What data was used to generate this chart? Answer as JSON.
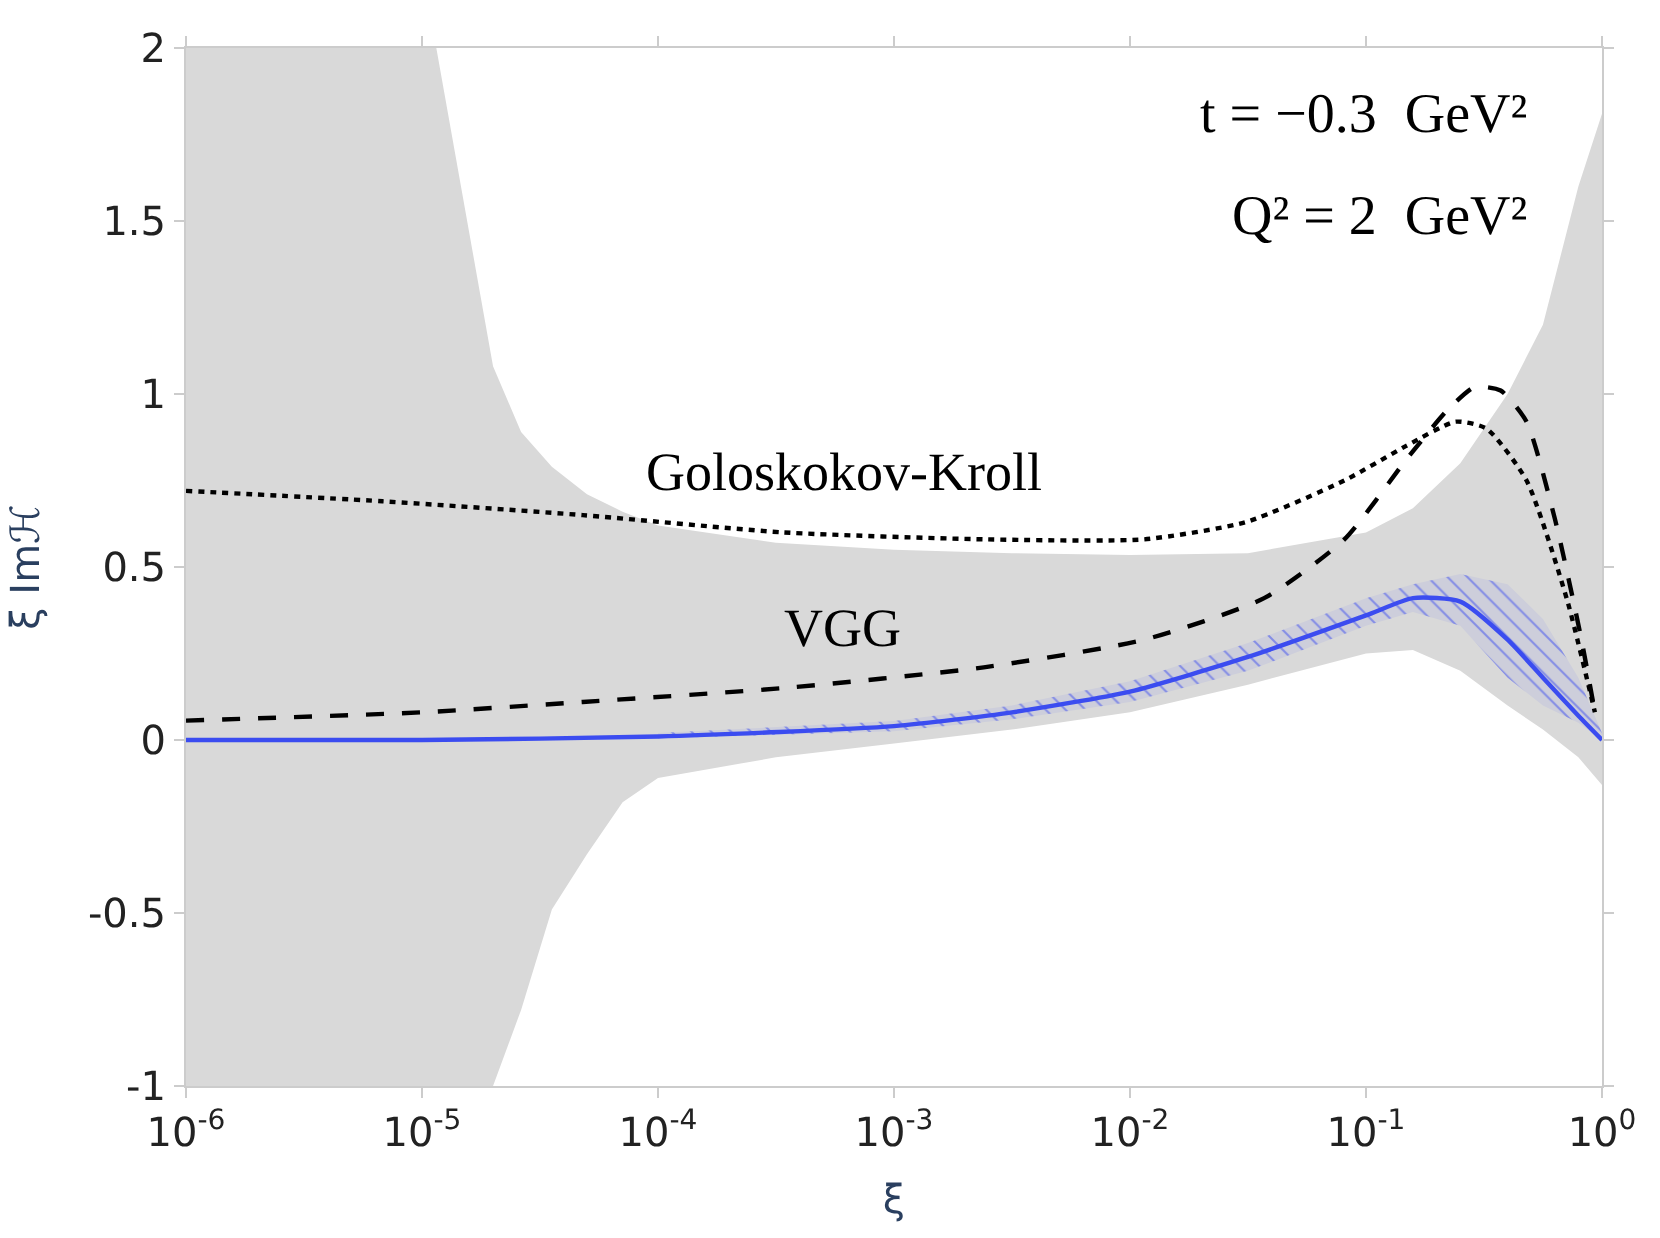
{
  "chart_data": {
    "type": "line",
    "xlabel": "ξ",
    "ylabel": "ξ Imℋ",
    "log": "x",
    "xlim": [
      1e-06,
      1
    ],
    "ylim": [
      -1,
      2
    ],
    "xticks": [
      {
        "value": 1e-06,
        "label": "10$^{-6}$"
      },
      {
        "value": 1e-05,
        "label": "10$^{-5}$"
      },
      {
        "value": 0.0001,
        "label": "10$^{-4}$"
      },
      {
        "value": 0.001,
        "label": "10$^{-3}$"
      },
      {
        "value": 0.01,
        "label": "10$^{-2}$"
      },
      {
        "value": 0.1,
        "label": "10$^{-1}$"
      },
      {
        "value": 1,
        "label": "10$^{0}$"
      }
    ],
    "yticks": [
      -1,
      -0.5,
      0,
      0.5,
      1,
      1.5,
      2
    ],
    "legend": false,
    "series": [
      {
        "type": "area",
        "color": "#d9d9d9",
        "x": [
          1e-06,
          3.16e-06,
          1.15e-05,
          2e-05,
          2.63e-05,
          3.55e-05,
          5e-05,
          7.08e-05,
          0.0001,
          0.000316,
          0.001,
          0.00316,
          0.01,
          0.0316,
          0.1,
          0.158,
          0.251,
          0.398,
          0.562,
          0.794,
          1
        ],
        "values": [
          null,
          null,
          null,
          null,
          null,
          null,
          null,
          null,
          null,
          null,
          null,
          null,
          null,
          null,
          null,
          null,
          null,
          null,
          null,
          null,
          null
        ],
        "lower": [
          -1,
          -1,
          -1,
          -1,
          -0.78,
          -0.49,
          -0.33,
          -0.18,
          -0.11,
          -0.05,
          -0.01,
          0.03,
          0.08,
          0.16,
          0.25,
          0.26,
          0.2,
          0.1,
          0.03,
          -0.05,
          -0.13
        ],
        "upper": [
          2,
          2,
          2,
          1.08,
          0.89,
          0.79,
          0.71,
          0.66,
          0.62,
          0.57,
          0.55,
          0.54,
          0.535,
          0.54,
          0.6,
          0.67,
          0.8,
          1.0,
          1.2,
          1.6,
          1.81
        ]
      },
      {
        "color": "#3b4cf0",
        "line_style": "solid",
        "x": [
          1e-06,
          1e-05,
          0.0001,
          0.001,
          0.00316,
          0.01,
          0.0316,
          0.1,
          0.158,
          0.251,
          0.398,
          0.562,
          0.794,
          1
        ],
        "values": [
          0,
          0,
          0.01,
          0.04,
          0.08,
          0.14,
          0.24,
          0.36,
          0.41,
          0.4,
          0.29,
          0.18,
          0.07,
          0.0
        ],
        "lower": [
          null,
          null,
          0.005,
          0.025,
          0.06,
          0.11,
          0.2,
          0.33,
          0.37,
          0.33,
          0.18,
          0.1,
          0.05,
          0.0
        ],
        "upper": [
          null,
          null,
          0.02,
          0.055,
          0.1,
          0.17,
          0.28,
          0.41,
          0.45,
          0.48,
          0.45,
          0.35,
          0.18,
          0.02
        ]
      },
      {
        "name": "VGG",
        "color": "#000000",
        "line_style": "dashed",
        "x": [
          1e-06,
          1e-05,
          4.8e-05,
          0.000339,
          0.0024,
          0.0115,
          0.037,
          0.081,
          0.148,
          0.219,
          0.288,
          0.372,
          0.479,
          0.631,
          0.813,
          0.933
        ],
        "values": [
          0.056,
          0.08,
          0.11,
          0.15,
          0.21,
          0.29,
          0.41,
          0.58,
          0.81,
          0.95,
          1.02,
          1.01,
          0.92,
          0.64,
          0.3,
          0.08
        ]
      },
      {
        "name": "Goloskokov-Kroll",
        "color": "#000000",
        "line_style": "dotted",
        "x": [
          1e-06,
          6.8e-06,
          4.8e-05,
          0.000339,
          0.0024,
          0.0115,
          0.031,
          0.081,
          0.148,
          0.24,
          0.324,
          0.479,
          0.708,
          0.933
        ],
        "values": [
          0.72,
          0.69,
          0.65,
          0.6,
          0.58,
          0.58,
          0.63,
          0.75,
          0.85,
          0.92,
          0.9,
          0.75,
          0.41,
          0.08
        ]
      }
    ],
    "annotations": [
      "t = −0.3  GeV²",
      "Q² = 2  GeV²"
    ]
  }
}
